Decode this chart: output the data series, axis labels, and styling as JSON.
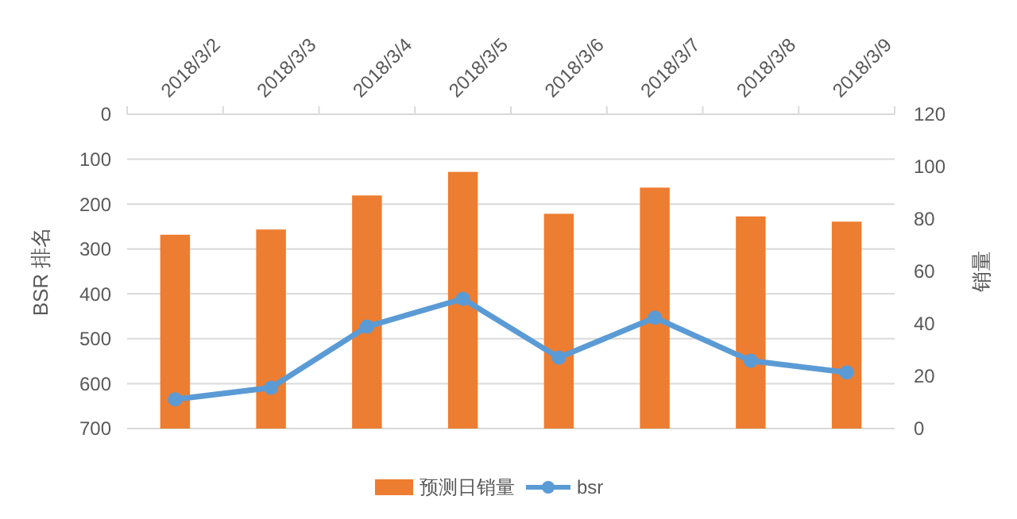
{
  "chart_data": {
    "type": "bar",
    "categories": [
      "2018/3/2",
      "2018/3/3",
      "2018/3/4",
      "2018/3/5",
      "2018/3/6",
      "2018/3/7",
      "2018/3/8",
      "2018/3/9"
    ],
    "series": [
      {
        "name": "预测日销量",
        "axis": "y2",
        "color": "#ed7d31",
        "values": [
          74,
          76,
          89,
          98,
          82,
          92,
          81,
          79
        ]
      },
      {
        "name": "bsr",
        "type": "line",
        "axis": "y",
        "color": "#5b9bd5",
        "values": [
          635,
          609,
          473,
          411,
          542,
          453,
          549,
          575
        ]
      }
    ],
    "ylabel": "BSR 排名",
    "y2label": "销量",
    "ylim": [
      700,
      0
    ],
    "yticks": [
      0,
      100,
      200,
      300,
      400,
      500,
      600,
      700
    ],
    "y2lim": [
      0,
      120
    ],
    "y2ticks": [
      0,
      20,
      40,
      60,
      80,
      100,
      120
    ],
    "grid": "y",
    "legend": "bottom",
    "marker": "circle",
    "line_style": "solid"
  }
}
